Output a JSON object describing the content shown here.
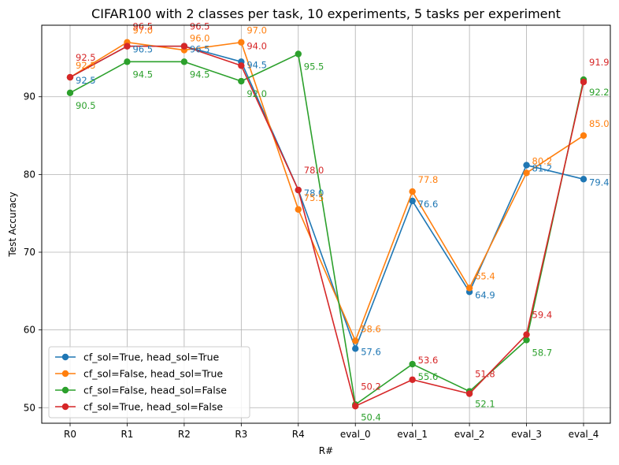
{
  "chart_data": {
    "type": "line",
    "title": "CIFAR100 with 2 classes per task, 10 experiments, 5 tasks per experiment",
    "xlabel": "R#",
    "ylabel": "Test Accuracy",
    "categories": [
      "R0",
      "R1",
      "R2",
      "R3",
      "R4",
      "eval_0",
      "eval_1",
      "eval_2",
      "eval_3",
      "eval_4"
    ],
    "ylim": [
      48,
      99.2
    ],
    "yticks": [
      50,
      60,
      70,
      80,
      90
    ],
    "grid": true,
    "legend_position": "lower-left",
    "series": [
      {
        "name": "cf_sol=True, head_sol=True",
        "color": "#1f77b4",
        "values": [
          92.5,
          96.5,
          96.5,
          94.5,
          78.0,
          57.6,
          76.6,
          64.9,
          81.2,
          79.4
        ],
        "labels": [
          "92.5",
          "96.5",
          "96.5",
          "94.5",
          "78.0",
          "57.6",
          "76.6",
          "64.9",
          "81.2",
          "79.4"
        ]
      },
      {
        "name": "cf_sol=False, head_sol=True",
        "color": "#ff7f0e",
        "values": [
          92.5,
          97.0,
          96.0,
          97.0,
          75.5,
          58.6,
          77.8,
          65.4,
          80.2,
          85.0
        ],
        "labels": [
          "92.5",
          "97.0",
          "96.0",
          "97.0",
          "75.5",
          "58.6",
          "77.8",
          "65.4",
          "80.2",
          "85.0"
        ]
      },
      {
        "name": "cf_sol=False, head_sol=False",
        "color": "#2ca02c",
        "values": [
          90.5,
          94.5,
          94.5,
          92.0,
          95.5,
          50.4,
          55.6,
          52.1,
          58.7,
          92.2
        ],
        "labels": [
          "90.5",
          "94.5",
          "94.5",
          "92.0",
          "95.5",
          "50.4",
          "55.6",
          "52.1",
          "58.7",
          "92.2"
        ]
      },
      {
        "name": "cf_sol=True, head_sol=False",
        "color": "#d62728",
        "values": [
          92.5,
          96.5,
          96.5,
          94.0,
          78.0,
          50.2,
          53.6,
          51.8,
          59.4,
          91.9
        ],
        "labels": [
          "92.5",
          "96.5",
          "96.5",
          "94.0",
          "78.0",
          "50.2",
          "53.6",
          "51.8",
          "59.4",
          "91.9"
        ]
      }
    ]
  }
}
